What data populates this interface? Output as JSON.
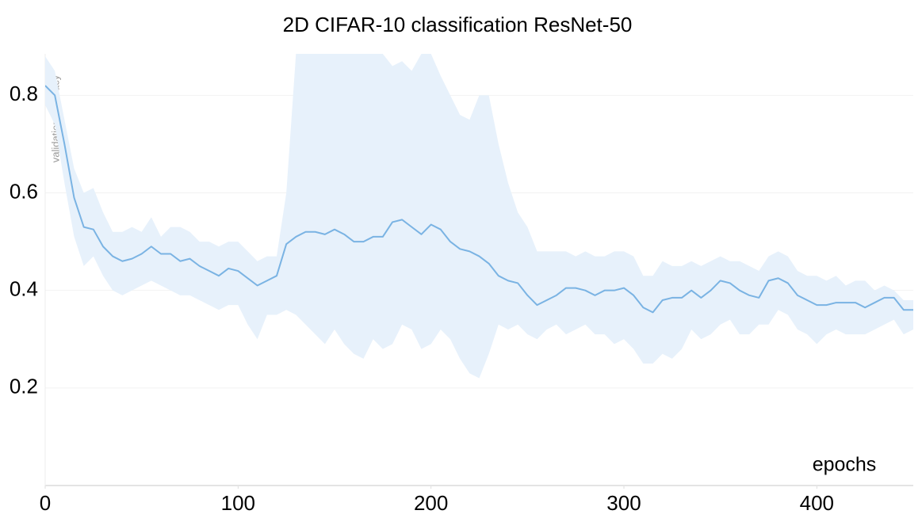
{
  "chart_data": {
    "type": "line",
    "title": "2D CIFAR-10 classification ResNet-50",
    "xlabel": "epochs",
    "ylabel": "validation accuracy",
    "xlim": [
      0,
      450
    ],
    "ylim": [
      0,
      0.885
    ],
    "xticks": [
      0,
      100,
      200,
      300,
      400
    ],
    "yticks": [
      0.2,
      0.4,
      0.6,
      0.8
    ],
    "grid": true,
    "x": [
      0,
      5,
      10,
      15,
      20,
      25,
      30,
      35,
      40,
      45,
      50,
      55,
      60,
      65,
      70,
      75,
      80,
      85,
      90,
      95,
      100,
      105,
      110,
      115,
      120,
      125,
      130,
      135,
      140,
      145,
      150,
      155,
      160,
      165,
      170,
      175,
      180,
      185,
      190,
      195,
      200,
      205,
      210,
      215,
      220,
      225,
      230,
      235,
      240,
      245,
      250,
      255,
      260,
      265,
      270,
      275,
      280,
      285,
      290,
      295,
      300,
      305,
      310,
      315,
      320,
      325,
      330,
      335,
      340,
      345,
      350,
      355,
      360,
      365,
      370,
      375,
      380,
      385,
      390,
      395,
      400,
      405,
      410,
      415,
      420,
      425,
      430,
      435,
      440,
      445,
      450
    ],
    "series": [
      {
        "color": "#7ab3e3",
        "band_color": "#e7f1fb",
        "values": [
          0.82,
          0.8,
          0.7,
          0.59,
          0.53,
          0.525,
          0.49,
          0.47,
          0.46,
          0.465,
          0.475,
          0.49,
          0.475,
          0.475,
          0.46,
          0.465,
          0.45,
          0.44,
          0.43,
          0.445,
          0.44,
          0.425,
          0.41,
          0.42,
          0.43,
          0.495,
          0.51,
          0.52,
          0.52,
          0.515,
          0.525,
          0.515,
          0.5,
          0.5,
          0.51,
          0.51,
          0.54,
          0.545,
          0.53,
          0.515,
          0.535,
          0.525,
          0.5,
          0.485,
          0.48,
          0.47,
          0.455,
          0.43,
          0.42,
          0.415,
          0.39,
          0.37,
          0.38,
          0.39,
          0.405,
          0.405,
          0.4,
          0.39,
          0.4,
          0.4,
          0.405,
          0.39,
          0.365,
          0.355,
          0.38,
          0.385,
          0.385,
          0.4,
          0.385,
          0.4,
          0.42,
          0.415,
          0.4,
          0.39,
          0.385,
          0.42,
          0.425,
          0.415,
          0.39,
          0.38,
          0.37,
          0.37,
          0.375,
          0.375,
          0.375,
          0.365,
          0.375,
          0.385,
          0.385,
          0.36,
          0.36
        ],
        "upper": [
          0.88,
          0.85,
          0.75,
          0.65,
          0.6,
          0.61,
          0.56,
          0.52,
          0.52,
          0.53,
          0.52,
          0.55,
          0.51,
          0.53,
          0.53,
          0.52,
          0.5,
          0.5,
          0.49,
          0.5,
          0.5,
          0.48,
          0.46,
          0.47,
          0.47,
          0.6,
          0.885,
          0.885,
          0.885,
          0.885,
          0.885,
          0.885,
          0.885,
          0.885,
          0.885,
          0.885,
          0.86,
          0.87,
          0.85,
          0.885,
          0.885,
          0.84,
          0.8,
          0.76,
          0.75,
          0.8,
          0.8,
          0.7,
          0.62,
          0.56,
          0.53,
          0.48,
          0.48,
          0.48,
          0.48,
          0.47,
          0.48,
          0.47,
          0.47,
          0.48,
          0.48,
          0.47,
          0.43,
          0.43,
          0.46,
          0.45,
          0.45,
          0.46,
          0.45,
          0.46,
          0.47,
          0.46,
          0.46,
          0.45,
          0.44,
          0.47,
          0.48,
          0.47,
          0.44,
          0.43,
          0.43,
          0.42,
          0.43,
          0.41,
          0.42,
          0.42,
          0.4,
          0.41,
          0.4,
          0.38,
          0.38
        ],
        "lower": [
          0.78,
          0.74,
          0.62,
          0.51,
          0.45,
          0.47,
          0.43,
          0.4,
          0.39,
          0.4,
          0.41,
          0.42,
          0.41,
          0.4,
          0.39,
          0.39,
          0.38,
          0.37,
          0.36,
          0.37,
          0.37,
          0.33,
          0.3,
          0.35,
          0.35,
          0.36,
          0.35,
          0.33,
          0.31,
          0.29,
          0.32,
          0.29,
          0.27,
          0.26,
          0.3,
          0.28,
          0.29,
          0.33,
          0.32,
          0.28,
          0.29,
          0.32,
          0.3,
          0.26,
          0.23,
          0.22,
          0.27,
          0.33,
          0.32,
          0.33,
          0.31,
          0.3,
          0.32,
          0.33,
          0.31,
          0.32,
          0.33,
          0.31,
          0.31,
          0.29,
          0.3,
          0.28,
          0.25,
          0.25,
          0.27,
          0.26,
          0.28,
          0.32,
          0.3,
          0.31,
          0.33,
          0.34,
          0.31,
          0.31,
          0.33,
          0.33,
          0.36,
          0.35,
          0.32,
          0.31,
          0.29,
          0.31,
          0.32,
          0.31,
          0.31,
          0.31,
          0.32,
          0.33,
          0.34,
          0.31,
          0.32
        ]
      }
    ]
  }
}
